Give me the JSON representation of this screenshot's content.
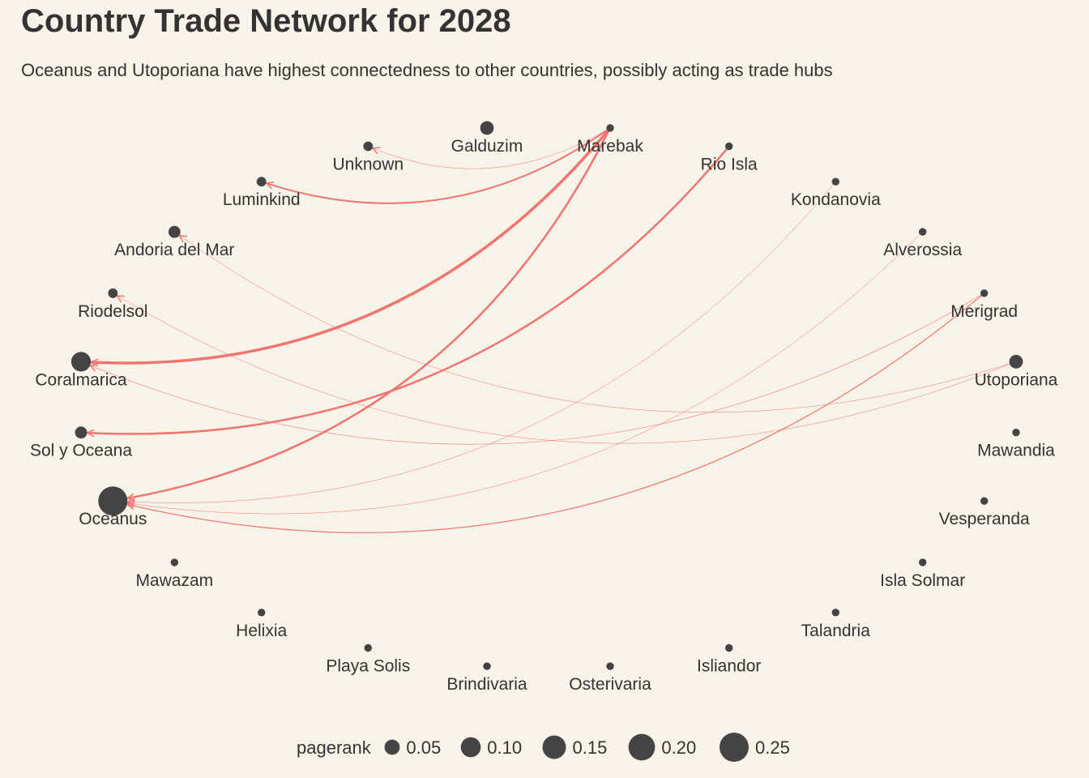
{
  "title": "Country Trade Network for 2028",
  "subtitle": "Oceanus and Utoporiana have highest connectedness to other countries, possibly acting as trade hubs",
  "colors": {
    "background": "#f8f3e8",
    "node": "#444444",
    "edge": "#f07470",
    "text": "#333333"
  },
  "nodes": [
    {
      "name": "Galduzim",
      "pagerank": 0.036
    },
    {
      "name": "Marebak",
      "pagerank": 0.005
    },
    {
      "name": "Rio Isla",
      "pagerank": 0.005
    },
    {
      "name": "Kondanovia",
      "pagerank": 0.005
    },
    {
      "name": "Alverossia",
      "pagerank": 0.005
    },
    {
      "name": "Merigrad",
      "pagerank": 0.005
    },
    {
      "name": "Utoporiana",
      "pagerank": 0.036
    },
    {
      "name": "Mawandia",
      "pagerank": 0.005
    },
    {
      "name": "Vesperanda",
      "pagerank": 0.005
    },
    {
      "name": "Isla Solmar",
      "pagerank": 0.005
    },
    {
      "name": "Talandria",
      "pagerank": 0.005
    },
    {
      "name": "Isliandor",
      "pagerank": 0.005
    },
    {
      "name": "Osterivaria",
      "pagerank": 0.005
    },
    {
      "name": "Brindivaria",
      "pagerank": 0.005
    },
    {
      "name": "Playa Solis",
      "pagerank": 0.005
    },
    {
      "name": "Helixia",
      "pagerank": 0.005
    },
    {
      "name": "Mawazam",
      "pagerank": 0.005
    },
    {
      "name": "Oceanus",
      "pagerank": 0.25
    },
    {
      "name": "Sol y Oceana",
      "pagerank": 0.025
    },
    {
      "name": "Coralmarica",
      "pagerank": 0.095
    },
    {
      "name": "Riodelsol",
      "pagerank": 0.012
    },
    {
      "name": "Andoria del Mar",
      "pagerank": 0.025
    },
    {
      "name": "Luminkind",
      "pagerank": 0.012
    },
    {
      "name": "Unknown",
      "pagerank": 0.012
    }
  ],
  "edges": [
    {
      "from": "Marebak",
      "to": "Unknown",
      "weight": 0.5
    },
    {
      "from": "Marebak",
      "to": "Luminkind",
      "weight": 2
    },
    {
      "from": "Marebak",
      "to": "Coralmarica",
      "weight": 3.5
    },
    {
      "from": "Marebak",
      "to": "Oceanus",
      "weight": 2.5
    },
    {
      "from": "Rio Isla",
      "to": "Sol y Oceana",
      "weight": 2.5
    },
    {
      "from": "Merigrad",
      "to": "Coralmarica",
      "weight": 0.6
    },
    {
      "from": "Utoporiana",
      "to": "Riodelsol",
      "weight": 0.5
    },
    {
      "from": "Utoporiana",
      "to": "Andoria del Mar",
      "weight": 0.5
    },
    {
      "from": "Kondanovia",
      "to": "Oceanus",
      "weight": 0.5
    },
    {
      "from": "Alverossia",
      "to": "Oceanus",
      "weight": 0.5
    },
    {
      "from": "Merigrad",
      "to": "Oceanus",
      "weight": 1.2
    }
  ],
  "legend": {
    "title": "pagerank",
    "items": [
      {
        "value": 0.05,
        "label": "0.05"
      },
      {
        "value": 0.1,
        "label": "0.10"
      },
      {
        "value": 0.15,
        "label": "0.15"
      },
      {
        "value": 0.2,
        "label": "0.20"
      },
      {
        "value": 0.25,
        "label": "0.25"
      }
    ]
  }
}
